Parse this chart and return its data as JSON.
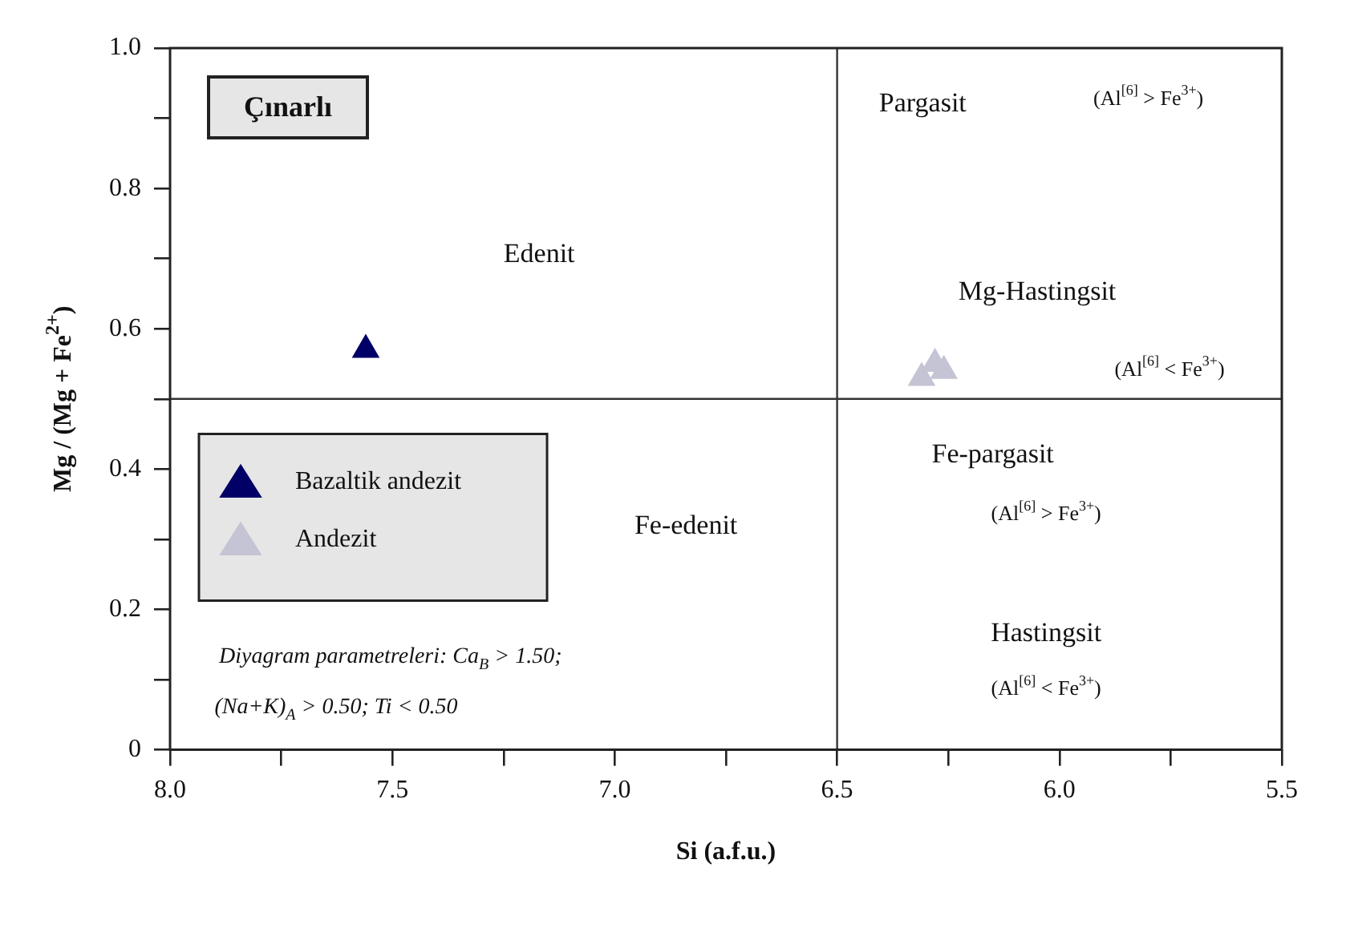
{
  "chart_data": {
    "type": "scatter",
    "title": "Çınarlı",
    "xlabel": "Si (a.f.u.)",
    "ylabel": "Mg / (Mg + Fe$^{2+}$)",
    "xlim": [
      8,
      5.5
    ],
    "ylim": [
      0,
      1
    ],
    "xticks": [
      {
        "value": 8,
        "label": "8.0"
      },
      {
        "value": 7.75,
        "label": null
      },
      7.5,
      {
        "value": 7.25,
        "label": null
      },
      {
        "value": 7,
        "label": "7.0"
      },
      {
        "value": 6.75,
        "label": null
      },
      6.5,
      {
        "value": 6.25,
        "label": null
      },
      {
        "value": 6,
        "label": "6.0"
      },
      {
        "value": 5.75,
        "label": null
      },
      5.5
    ],
    "yticks": [
      0,
      {
        "value": 0.1,
        "label": null
      },
      0.2,
      {
        "value": 0.3,
        "label": null
      },
      0.4,
      {
        "value": 0.5,
        "label": null
      },
      0.6,
      {
        "value": 0.7,
        "label": null
      },
      0.8,
      {
        "value": 0.9,
        "label": null
      },
      {
        "value": 1,
        "label": "1.0"
      }
    ],
    "marker": "triangle",
    "legend": "left",
    "series": [
      {
        "name": "Bazaltik andezit",
        "color": "#000066",
        "x": [
          7.56
        ],
        "values": [
          0.57
        ]
      },
      {
        "name": "Andezit",
        "color": "#c4c4d4",
        "x": [
          6.31,
          6.28,
          6.26
        ],
        "values": [
          0.53,
          0.55,
          0.54
        ]
      }
    ],
    "ref_lines": [
      {
        "axis": "x",
        "value": 6.5,
        "color": "#333333"
      },
      {
        "axis": "y",
        "value": 0.5,
        "color": "#333333"
      }
    ],
    "annotations": [
      "Edenit",
      "Pargasit",
      "(Al$^{[6]}$ > Fe$^{3+}$)",
      "Mg-Hastingsit",
      "(Al$^{[6]}$ < Fe$^{3+}$)",
      "Fe-edenit",
      "Fe-pargasit",
      "(Al$^{[6]}$ > Fe$^{3+}$)",
      "Hastingsit",
      "(Al$^{[6]}$ < Fe$^{3+}$)",
      "Diyagram parametreleri: Ca$_{B}$ > 1.50;",
      "(Na+K)$_{A}$ > 0.50; Ti < 0.50"
    ]
  }
}
